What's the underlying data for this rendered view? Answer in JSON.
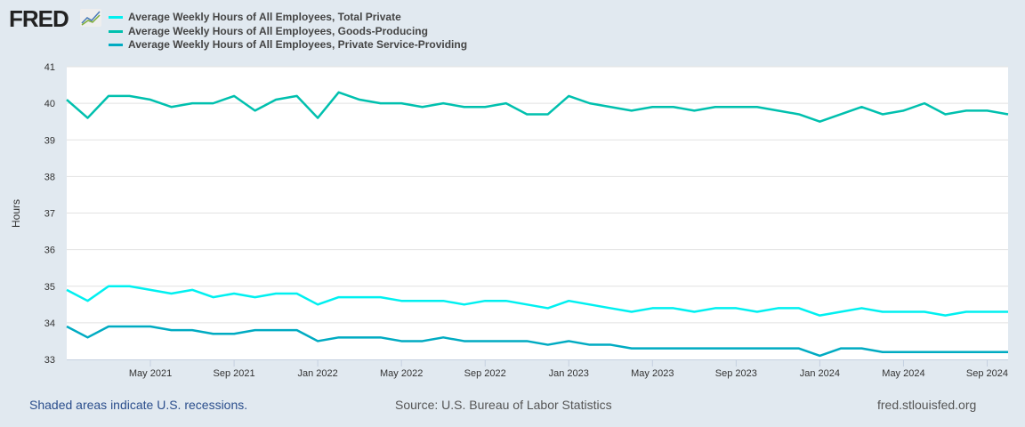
{
  "logo": "FRED",
  "footer": {
    "recession_note": "Shaded areas indicate U.S. recessions.",
    "source": "Source: U.S. Bureau of Labor Statistics",
    "site": "fred.stlouisfed.org"
  },
  "chart_data": {
    "type": "line",
    "ylabel": "Hours",
    "ylim": [
      33,
      41
    ],
    "yticks": [
      "33",
      "34",
      "35",
      "36",
      "37",
      "38",
      "39",
      "40",
      "41"
    ],
    "x_start": "Jan 2021",
    "x_end": "Oct 2024",
    "xticks": [
      {
        "label": "May 2021",
        "i": 4
      },
      {
        "label": "Sep 2021",
        "i": 8
      },
      {
        "label": "Jan 2022",
        "i": 12
      },
      {
        "label": "May 2022",
        "i": 16
      },
      {
        "label": "Sep 2022",
        "i": 20
      },
      {
        "label": "Jan 2023",
        "i": 24
      },
      {
        "label": "May 2023",
        "i": 28
      },
      {
        "label": "Sep 2023",
        "i": 32
      },
      {
        "label": "Jan 2024",
        "i": 36
      },
      {
        "label": "May 2024",
        "i": 40
      },
      {
        "label": "Sep 2024",
        "i": 44
      }
    ],
    "grid": true,
    "legend": "top-left",
    "series": [
      {
        "name": "Average Weekly Hours of All Employees, Total Private",
        "color": "#00f0f0",
        "values": [
          34.9,
          34.6,
          35.0,
          35.0,
          34.9,
          34.8,
          34.9,
          34.7,
          34.8,
          34.7,
          34.8,
          34.8,
          34.5,
          34.7,
          34.7,
          34.7,
          34.6,
          34.6,
          34.6,
          34.5,
          34.6,
          34.6,
          34.5,
          34.4,
          34.6,
          34.5,
          34.4,
          34.3,
          34.4,
          34.4,
          34.3,
          34.4,
          34.4,
          34.3,
          34.4,
          34.4,
          34.2,
          34.3,
          34.4,
          34.3,
          34.3,
          34.3,
          34.2,
          34.3,
          34.3,
          34.3
        ]
      },
      {
        "name": "Average Weekly Hours of All Employees, Goods-Producing",
        "color": "#00c0ae",
        "values": [
          40.1,
          39.6,
          40.2,
          40.2,
          40.1,
          39.9,
          40.0,
          40.0,
          40.2,
          39.8,
          40.1,
          40.2,
          39.6,
          40.3,
          40.1,
          40.0,
          40.0,
          39.9,
          40.0,
          39.9,
          39.9,
          40.0,
          39.7,
          39.7,
          40.2,
          40.0,
          39.9,
          39.8,
          39.9,
          39.9,
          39.8,
          39.9,
          39.9,
          39.9,
          39.8,
          39.7,
          39.5,
          39.7,
          39.9,
          39.7,
          39.8,
          40.0,
          39.7,
          39.8,
          39.8,
          39.7
        ]
      },
      {
        "name": "Average Weekly Hours of All Employees, Private Service-Providing",
        "color": "#00abc2",
        "values": [
          33.9,
          33.6,
          33.9,
          33.9,
          33.9,
          33.8,
          33.8,
          33.7,
          33.7,
          33.8,
          33.8,
          33.8,
          33.5,
          33.6,
          33.6,
          33.6,
          33.5,
          33.5,
          33.6,
          33.5,
          33.5,
          33.5,
          33.5,
          33.4,
          33.5,
          33.4,
          33.4,
          33.3,
          33.3,
          33.3,
          33.3,
          33.3,
          33.3,
          33.3,
          33.3,
          33.3,
          33.1,
          33.3,
          33.3,
          33.2,
          33.2,
          33.2,
          33.2,
          33.2,
          33.2,
          33.2
        ]
      }
    ]
  }
}
